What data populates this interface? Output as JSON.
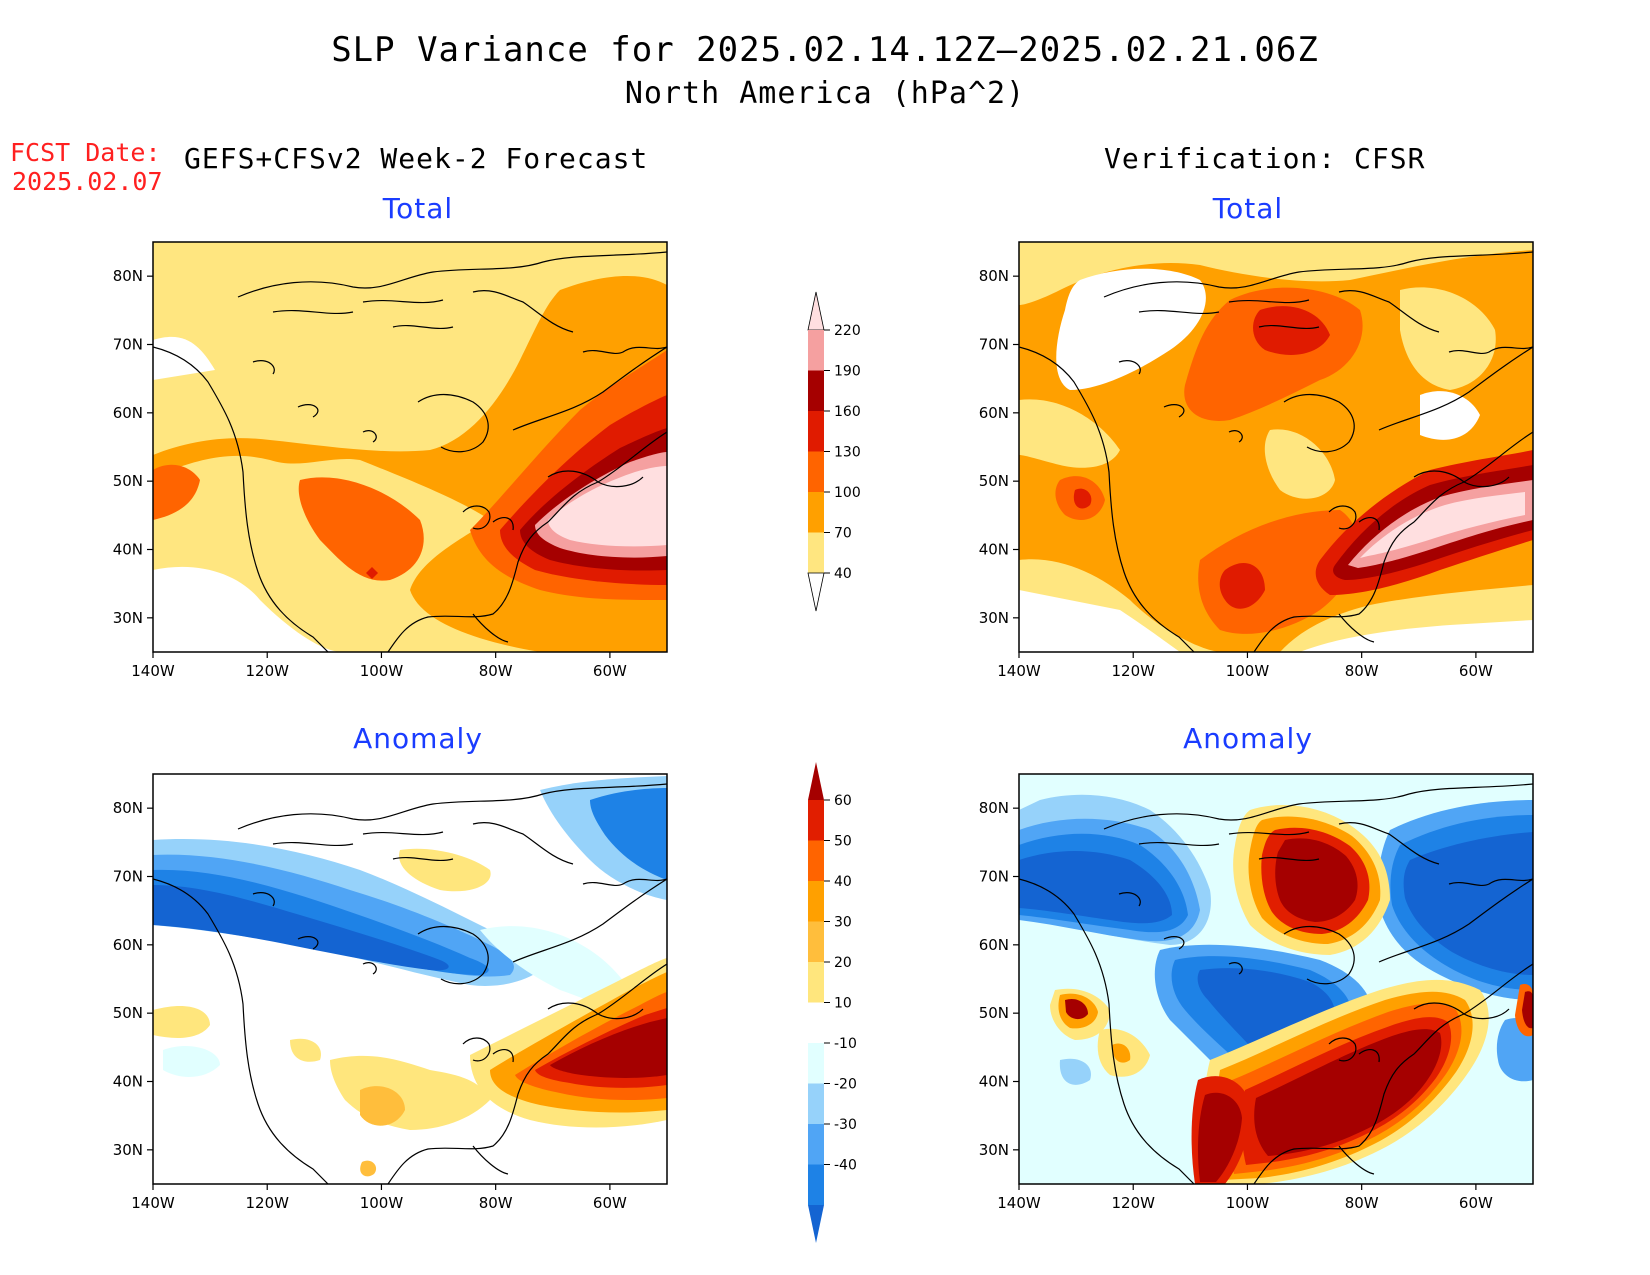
{
  "title": "SLP Variance for 2025.02.14.12Z–2025.02.21.06Z",
  "subtitle": "North America (hPa^2)",
  "fcst_label": "FCST Date:",
  "fcst_date": "2025.02.07",
  "left_header": "GEFS+CFSv2 Week-2 Forecast",
  "right_header": "Verification: CFSR",
  "panels": [
    {
      "id": "forecast-total",
      "title": "Total"
    },
    {
      "id": "verification-total",
      "title": "Total"
    },
    {
      "id": "forecast-anomaly",
      "title": "Anomaly"
    },
    {
      "id": "verification-anomaly",
      "title": "Anomaly"
    }
  ],
  "chart_data": [
    {
      "type": "heatmap",
      "xlabels": [
        "140W",
        "120W",
        "100W",
        "80W",
        "60W"
      ],
      "ylabels": [
        "30N",
        "40N",
        "50N",
        "60N",
        "70N",
        "80N"
      ],
      "colorbar_total": {
        "levels": [
          "40",
          "70",
          "100",
          "130",
          "160",
          "190",
          "220"
        ],
        "colors": [
          "#ffffff",
          "#ffe680",
          "#ffa000",
          "#ff6400",
          "#e01b00",
          "#a50000",
          "#f5a0a0",
          "#ffdfe0"
        ]
      },
      "colorbar_anomaly": {
        "levels": [
          "-40",
          "-30",
          "-20",
          "-10",
          "10",
          "20",
          "30",
          "40",
          "50",
          "60"
        ],
        "colors": [
          "#1464d2",
          "#1e82e6",
          "#50a5f5",
          "#96d2fa",
          "#e1ffff",
          "#ffffff",
          "#ffe67d",
          "#ffbe3c",
          "#ffa000",
          "#ff6400",
          "#e11e00",
          "#a50000"
        ]
      }
    }
  ],
  "colors": {
    "title_blue": "#1a3cff",
    "fcst_red": "#ff2020"
  }
}
